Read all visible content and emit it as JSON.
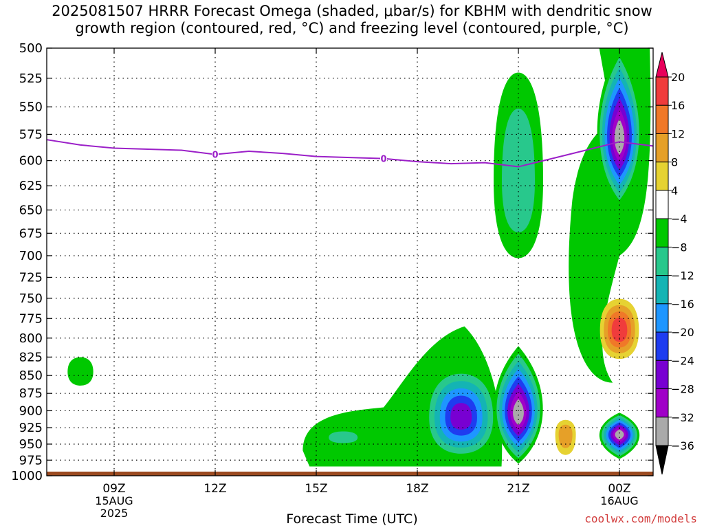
{
  "title_line1": "2025081507 HRRR Forecast Omega (shaded, μbar/s) for KBHM with dendritic snow",
  "title_line2": "growth region (contoured, red, °C) and freezing level (contoured, purple, °C)",
  "watermark": "coolwx.com/models",
  "chart_data": {
    "type": "contour",
    "xlabel": "Forecast Time (UTC)",
    "ylabel": "",
    "ylim": [
      1000,
      500
    ],
    "y_ticks": [
      500,
      525,
      550,
      575,
      600,
      625,
      650,
      675,
      700,
      725,
      750,
      775,
      800,
      825,
      850,
      875,
      900,
      925,
      950,
      975,
      1000
    ],
    "y_scale": "log-pressure",
    "x_ticks": [
      {
        "label": "09Z",
        "sub": [
          "15AUG",
          "2025"
        ],
        "hour": 9
      },
      {
        "label": "12Z",
        "sub": [],
        "hour": 12
      },
      {
        "label": "15Z",
        "sub": [],
        "hour": 15
      },
      {
        "label": "18Z",
        "sub": [],
        "hour": 18
      },
      {
        "label": "21Z",
        "sub": [],
        "hour": 21
      },
      {
        "label": "00Z",
        "sub": [
          "16AUG"
        ],
        "hour": 24
      }
    ],
    "xlim_hours": [
      7,
      25
    ],
    "grid": true,
    "colorbar": {
      "labels": [
        20,
        16,
        12,
        8,
        4,
        -4,
        -8,
        -12,
        -16,
        -20,
        -24,
        -28,
        -32,
        -36
      ],
      "colors": [
        "#e8005a",
        "#f03c3c",
        "#f07828",
        "#e6a028",
        "#e6d232",
        "#ffffff",
        "#00c800",
        "#28c88c",
        "#14b4b4",
        "#1e96ff",
        "#1e3cf0",
        "#7800d2",
        "#a000c8",
        "#aaaaaa",
        "#000000"
      ]
    },
    "freezing_level": {
      "color": "#9b1fc8",
      "label": "0",
      "points": [
        [
          7,
          580
        ],
        [
          8,
          585
        ],
        [
          9,
          588
        ],
        [
          10,
          589
        ],
        [
          11,
          590
        ],
        [
          12,
          594
        ],
        [
          13,
          591
        ],
        [
          14,
          593
        ],
        [
          15,
          596
        ],
        [
          16,
          597
        ],
        [
          17,
          598
        ],
        [
          18,
          601
        ],
        [
          19,
          603
        ],
        [
          20,
          602
        ],
        [
          21,
          606
        ],
        [
          22,
          598
        ],
        [
          23,
          590
        ],
        [
          24,
          582
        ],
        [
          25,
          586
        ]
      ]
    },
    "omega_features": [
      {
        "hour": 8.0,
        "p": 845,
        "value": -8,
        "type": "blob"
      },
      {
        "hour": 15.8,
        "p": 940,
        "value": -12,
        "type": "blob"
      },
      {
        "hour": 19.3,
        "p": 910,
        "value": -28,
        "type": "blob"
      },
      {
        "hour": 21.0,
        "p": 905,
        "value": -36,
        "type": "column"
      },
      {
        "hour": 21.0,
        "p": 620,
        "value": -12,
        "type": "plume"
      },
      {
        "hour": 22.4,
        "p": 935,
        "value": 12,
        "type": "blob"
      },
      {
        "hour": 24.0,
        "p": 580,
        "value": -36,
        "type": "column"
      },
      {
        "hour": 24.0,
        "p": 790,
        "value": 20,
        "type": "blob"
      },
      {
        "hour": 24.0,
        "p": 935,
        "value": -36,
        "type": "blob"
      }
    ]
  }
}
